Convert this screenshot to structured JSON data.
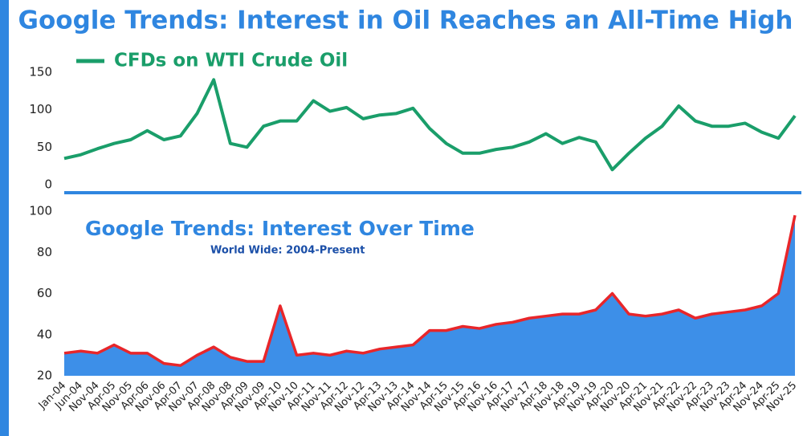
{
  "title": "Google Trends: Interest in Oil Reaches an All-Time High",
  "chart_data": [
    {
      "type": "line",
      "series": [
        {
          "name": "CFDs on WTI Crude Oil",
          "color": "#1a9e6a",
          "values": [
            35,
            40,
            48,
            55,
            60,
            72,
            60,
            65,
            95,
            140,
            55,
            50,
            78,
            85,
            85,
            112,
            98,
            103,
            88,
            93,
            95,
            102,
            75,
            55,
            42,
            42,
            47,
            50,
            57,
            68,
            55,
            63,
            57,
            20,
            42,
            62,
            78,
            105,
            85,
            78,
            78,
            82,
            70,
            62,
            92
          ]
        }
      ],
      "ylim": [
        0,
        150
      ],
      "yticks": [
        0,
        50,
        100,
        150
      ],
      "legend": "top-left"
    },
    {
      "type": "area",
      "title": "Google Trends: Interest Over Time",
      "subtitle": "World Wide: 2004-Present",
      "categories": [
        "Jan-04",
        "Jun-04",
        "Nov-04",
        "Apr-05",
        "Nov-05",
        "Apr-06",
        "Nov-06",
        "Apr-07",
        "Nov-07",
        "Apr-08",
        "Nov-08",
        "Apr-09",
        "Nov-09",
        "Apr-10",
        "Nov-10",
        "Apr-11",
        "Nov-11",
        "Apr-12",
        "Nov-12",
        "Apr-13",
        "Nov-13",
        "Apr-14",
        "Nov-14",
        "Apr-15",
        "Nov-15",
        "Apr-16",
        "Nov-16",
        "Apr-17",
        "Nov-17",
        "Apr-18",
        "Nov-18",
        "Apr-19",
        "Nov-19",
        "Apr-20",
        "Nov-20",
        "Apr-21",
        "Nov-21",
        "Apr-22",
        "Nov-22",
        "Apr-23",
        "Nov-23",
        "Apr-24",
        "Nov-24",
        "Apr-25",
        "Nov-25"
      ],
      "values": [
        31,
        32,
        31,
        35,
        31,
        31,
        26,
        25,
        30,
        34,
        29,
        27,
        27,
        54,
        30,
        31,
        30,
        32,
        31,
        33,
        34,
        35,
        42,
        42,
        44,
        43,
        45,
        46,
        48,
        49,
        50,
        50,
        52,
        60,
        50,
        49,
        50,
        52,
        48,
        50,
        51,
        52,
        54,
        60,
        98
      ],
      "color": "#e8262a",
      "fill": "#3d8fe8",
      "ylim": [
        20,
        100
      ],
      "yticks": [
        20,
        40,
        60,
        80,
        100
      ]
    }
  ]
}
